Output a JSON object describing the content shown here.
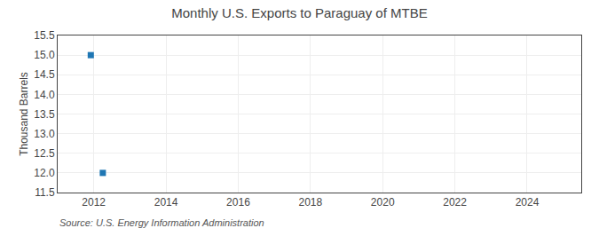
{
  "chart_data": {
    "type": "scatter",
    "title": "Monthly U.S. Exports to Paraguay of MTBE",
    "ylabel": "Thousand Barrels",
    "annotations": [
      "Source: U.S. Energy Information Administration"
    ],
    "x": [
      2011.917,
      2012.25
    ],
    "values": [
      15.0,
      12.0
    ],
    "marker": "square",
    "xlim": [
      2011.0,
      2025.5
    ],
    "ylim": [
      11.5,
      15.5
    ],
    "xticks": [
      2012,
      2014,
      2016,
      2018,
      2020,
      2022,
      2024
    ],
    "yticks": [
      11.5,
      {
        "value": 12.0,
        "label": "12.0"
      },
      12.5,
      {
        "value": 13.0,
        "label": "13.0"
      },
      13.5,
      {
        "value": 14.0,
        "label": "14.0"
      },
      14.5,
      {
        "value": 15.0,
        "label": "15.0"
      },
      15.5
    ],
    "grid": true
  }
}
